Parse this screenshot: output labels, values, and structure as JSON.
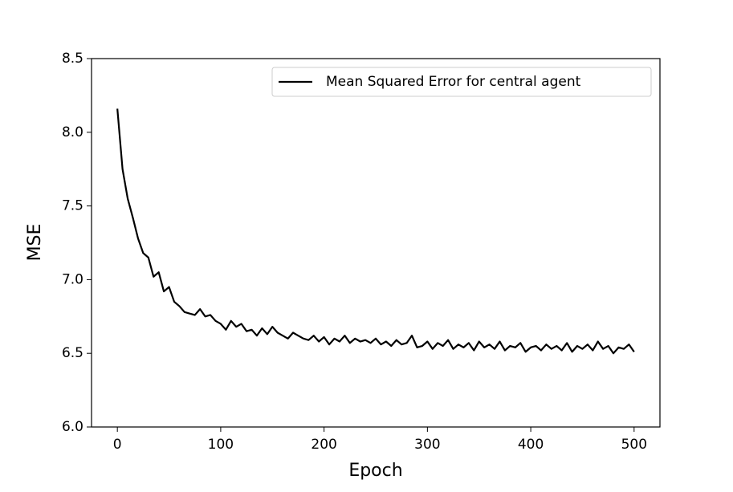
{
  "chart_data": {
    "type": "line",
    "x_label": "Epoch",
    "y_label": "MSE",
    "x": [
      0,
      5,
      10,
      15,
      20,
      25,
      30,
      35,
      40,
      45,
      50,
      55,
      60,
      65,
      70,
      75,
      80,
      85,
      90,
      95,
      100,
      105,
      110,
      115,
      120,
      125,
      130,
      135,
      140,
      145,
      150,
      155,
      160,
      165,
      170,
      175,
      180,
      185,
      190,
      195,
      200,
      205,
      210,
      215,
      220,
      225,
      230,
      235,
      240,
      245,
      250,
      255,
      260,
      265,
      270,
      275,
      280,
      285,
      290,
      295,
      300,
      305,
      310,
      315,
      320,
      325,
      330,
      335,
      340,
      345,
      350,
      355,
      360,
      365,
      370,
      375,
      380,
      385,
      390,
      395,
      400,
      405,
      410,
      415,
      420,
      425,
      430,
      435,
      440,
      445,
      450,
      455,
      460,
      465,
      470,
      475,
      480,
      485,
      490,
      495,
      500
    ],
    "series": [
      {
        "name": "Mean Squared Error for central agent",
        "color": "#000000",
        "values": [
          8.16,
          7.75,
          7.55,
          7.42,
          7.28,
          7.18,
          7.15,
          7.02,
          7.05,
          6.92,
          6.95,
          6.85,
          6.82,
          6.78,
          6.77,
          6.76,
          6.8,
          6.75,
          6.76,
          6.72,
          6.7,
          6.66,
          6.72,
          6.68,
          6.7,
          6.65,
          6.66,
          6.62,
          6.67,
          6.63,
          6.68,
          6.64,
          6.62,
          6.6,
          6.64,
          6.62,
          6.6,
          6.59,
          6.62,
          6.58,
          6.61,
          6.56,
          6.6,
          6.58,
          6.62,
          6.57,
          6.6,
          6.58,
          6.59,
          6.57,
          6.6,
          6.56,
          6.58,
          6.55,
          6.59,
          6.56,
          6.57,
          6.62,
          6.54,
          6.55,
          6.58,
          6.53,
          6.57,
          6.55,
          6.59,
          6.53,
          6.56,
          6.54,
          6.57,
          6.52,
          6.58,
          6.54,
          6.56,
          6.53,
          6.58,
          6.52,
          6.55,
          6.54,
          6.57,
          6.51,
          6.54,
          6.55,
          6.52,
          6.56,
          6.53,
          6.55,
          6.52,
          6.57,
          6.51,
          6.55,
          6.53,
          6.56,
          6.52,
          6.58,
          6.53,
          6.55,
          6.5,
          6.54,
          6.53,
          6.56,
          6.51
        ]
      }
    ],
    "xlim": [
      -25,
      525
    ],
    "xticks": [
      0,
      100,
      200,
      300,
      400,
      500
    ],
    "ylim": [
      6.0,
      8.5
    ],
    "yticks": [
      {
        "value": 6,
        "label": "6.0"
      },
      6.5,
      {
        "value": 7,
        "label": "7.0"
      },
      7.5,
      {
        "value": 8,
        "label": "8.0"
      },
      8.5
    ],
    "grid": false,
    "legend": "upper right"
  }
}
